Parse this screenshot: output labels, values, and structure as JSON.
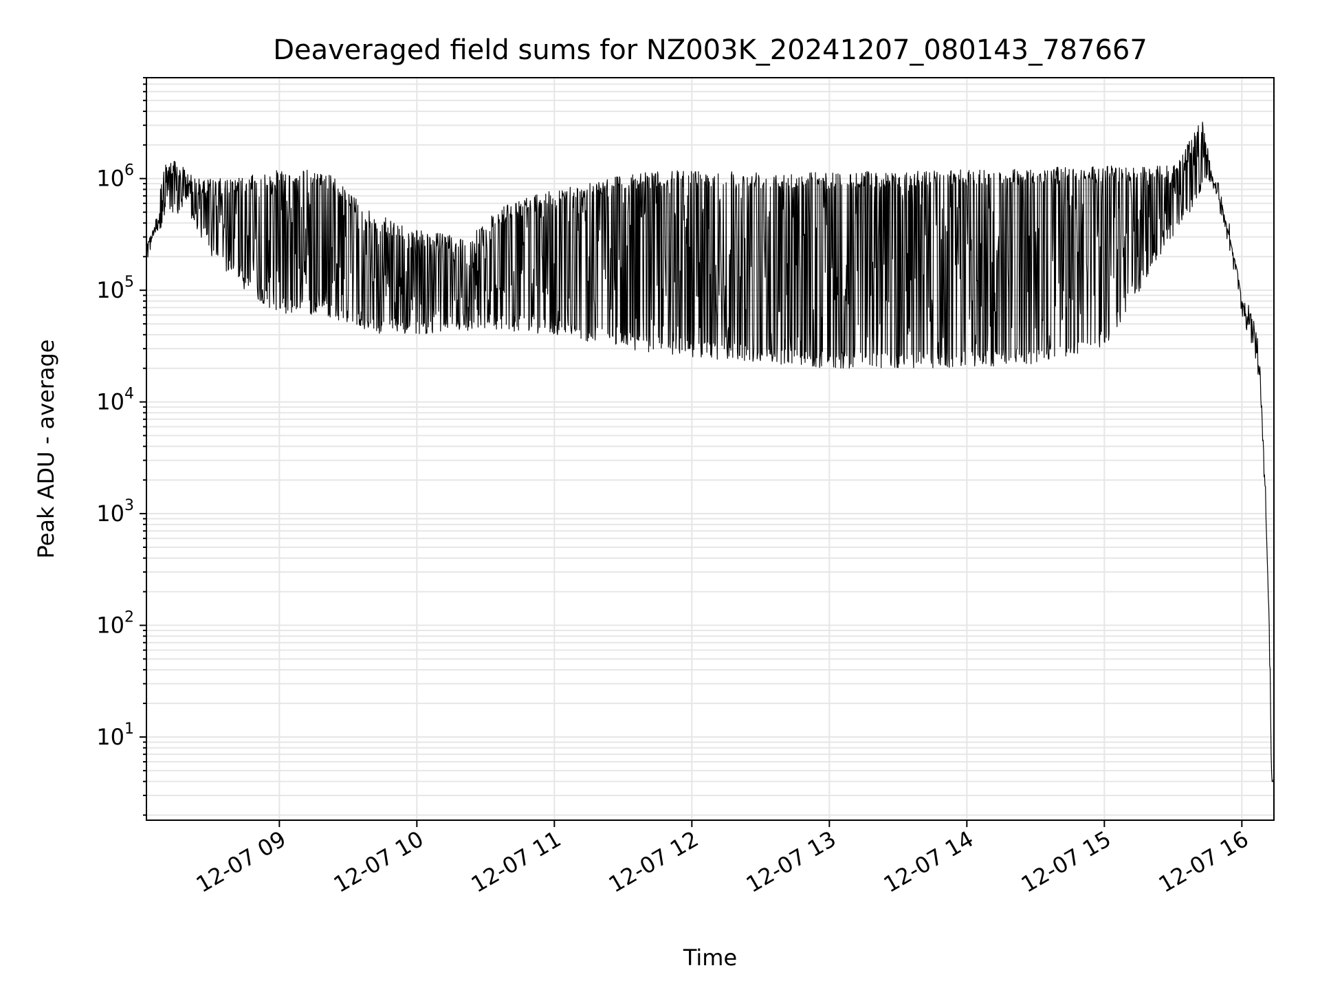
{
  "chart_data": {
    "type": "line",
    "title": "Deaveraged field sums for NZ003K_20241207_080143_787667",
    "xlabel": "Time",
    "ylabel": "Peak ADU - average",
    "x_axis": {
      "kind": "time",
      "range": [
        "2024-12-07 08:02",
        "2024-12-07 16:14"
      ],
      "ticks": [
        {
          "time": "2024-12-07 09:00",
          "label": "12-07 09"
        },
        {
          "time": "2024-12-07 10:00",
          "label": "12-07 10"
        },
        {
          "time": "2024-12-07 11:00",
          "label": "12-07 11"
        },
        {
          "time": "2024-12-07 12:00",
          "label": "12-07 12"
        },
        {
          "time": "2024-12-07 13:00",
          "label": "12-07 13"
        },
        {
          "time": "2024-12-07 14:00",
          "label": "12-07 14"
        },
        {
          "time": "2024-12-07 15:00",
          "label": "12-07 15"
        },
        {
          "time": "2024-12-07 16:00",
          "label": "12-07 16"
        }
      ]
    },
    "y_axis": {
      "scale": "log",
      "ylim": [
        1.8,
        8000000
      ],
      "ticks": [
        {
          "value": 10,
          "base": "10",
          "exp": "1"
        },
        {
          "value": 100,
          "base": "10",
          "exp": "2"
        },
        {
          "value": 1000,
          "base": "10",
          "exp": "3"
        },
        {
          "value": 10000,
          "base": "10",
          "exp": "4"
        },
        {
          "value": 100000,
          "base": "10",
          "exp": "5"
        },
        {
          "value": 1000000,
          "base": "10",
          "exp": "6"
        }
      ]
    },
    "grid": true,
    "legend": "none",
    "line_color": "#000000",
    "grid_color": "#e6e6e6",
    "series": [
      {
        "upper_envelope": [
          [
            "2024-12-07 08:02",
            250000
          ],
          [
            "2024-12-07 08:06",
            400000
          ],
          [
            "2024-12-07 08:10",
            1600000
          ],
          [
            "2024-12-07 08:15",
            1400000
          ],
          [
            "2024-12-07 08:25",
            1000000
          ],
          [
            "2024-12-07 08:40",
            1000000
          ],
          [
            "2024-12-07 09:00",
            1200000
          ],
          [
            "2024-12-07 09:20",
            1200000
          ],
          [
            "2024-12-07 09:40",
            500000
          ],
          [
            "2024-12-07 10:00",
            350000
          ],
          [
            "2024-12-07 10:20",
            300000
          ],
          [
            "2024-12-07 10:40",
            600000
          ],
          [
            "2024-12-07 11:00",
            800000
          ],
          [
            "2024-12-07 11:30",
            1100000
          ],
          [
            "2024-12-07 12:00",
            1200000
          ],
          [
            "2024-12-07 13:00",
            1150000
          ],
          [
            "2024-12-07 14:00",
            1200000
          ],
          [
            "2024-12-07 15:00",
            1300000
          ],
          [
            "2024-12-07 15:30",
            1300000
          ],
          [
            "2024-12-07 15:43",
            3500000
          ],
          [
            "2024-12-07 15:47",
            1100000
          ],
          [
            "2024-12-07 15:52",
            500000
          ],
          [
            "2024-12-07 15:58",
            150000
          ],
          [
            "2024-12-07 16:00",
            80000
          ],
          [
            "2024-12-07 16:05",
            40000
          ],
          [
            "2024-12-07 16:08",
            20000
          ],
          [
            "2024-12-07 16:10",
            2000
          ],
          [
            "2024-12-07 16:12",
            100
          ],
          [
            "2024-12-07 16:13",
            4
          ],
          [
            "2024-12-07 16:14",
            4
          ]
        ],
        "lower_envelope": [
          [
            "2024-12-07 08:02",
            250000
          ],
          [
            "2024-12-07 08:10",
            400000
          ],
          [
            "2024-12-07 08:20",
            500000
          ],
          [
            "2024-12-07 08:30",
            200000
          ],
          [
            "2024-12-07 08:45",
            100000
          ],
          [
            "2024-12-07 09:00",
            60000
          ],
          [
            "2024-12-07 09:20",
            60000
          ],
          [
            "2024-12-07 09:40",
            40000
          ],
          [
            "2024-12-07 10:00",
            40000
          ],
          [
            "2024-12-07 10:30",
            45000
          ],
          [
            "2024-12-07 11:00",
            40000
          ],
          [
            "2024-12-07 11:30",
            30000
          ],
          [
            "2024-12-07 12:00",
            25000
          ],
          [
            "2024-12-07 12:30",
            22000
          ],
          [
            "2024-12-07 13:00",
            20000
          ],
          [
            "2024-12-07 13:30",
            20000
          ],
          [
            "2024-12-07 14:00",
            20000
          ],
          [
            "2024-12-07 14:30",
            22000
          ],
          [
            "2024-12-07 15:00",
            30000
          ],
          [
            "2024-12-07 15:10",
            60000
          ],
          [
            "2024-12-07 15:20",
            150000
          ],
          [
            "2024-12-07 15:30",
            300000
          ],
          [
            "2024-12-07 15:40",
            600000
          ],
          [
            "2024-12-07 15:47",
            900000
          ],
          [
            "2024-12-07 15:52",
            500000
          ],
          [
            "2024-12-07 15:58",
            150000
          ],
          [
            "2024-12-07 16:00",
            80000
          ],
          [
            "2024-12-07 16:05",
            40000
          ],
          [
            "2024-12-07 16:08",
            20000
          ],
          [
            "2024-12-07 16:10",
            2000
          ],
          [
            "2024-12-07 16:12",
            100
          ],
          [
            "2024-12-07 16:13",
            4
          ],
          [
            "2024-12-07 16:14",
            4
          ]
        ]
      }
    ]
  }
}
